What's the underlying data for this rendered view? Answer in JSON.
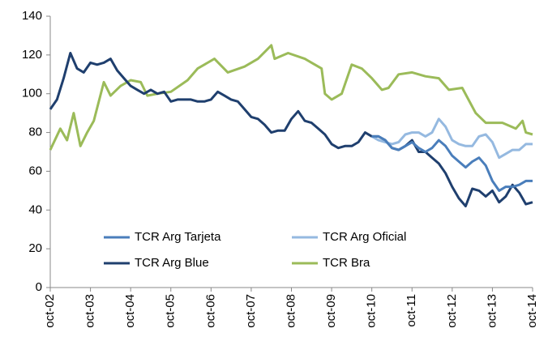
{
  "chart_data": {
    "type": "line",
    "xlim": [
      0,
      144
    ],
    "xticks": [
      {
        "value": 0,
        "label": "oct-02"
      },
      {
        "value": 12,
        "label": "oct-03"
      },
      {
        "value": 24,
        "label": "oct-04"
      },
      {
        "value": 36,
        "label": "oct-05"
      },
      {
        "value": 48,
        "label": "oct-06"
      },
      {
        "value": 60,
        "label": "oct-07"
      },
      {
        "value": 72,
        "label": "oct-08"
      },
      {
        "value": 84,
        "label": "oct-09"
      },
      {
        "value": 96,
        "label": "oct-10"
      },
      {
        "value": 108,
        "label": "oct-11"
      },
      {
        "value": 120,
        "label": "oct-12"
      },
      {
        "value": 132,
        "label": "oct-13"
      },
      {
        "value": 144,
        "label": "oct-14"
      }
    ],
    "ylim": [
      0,
      140
    ],
    "yticks": [
      0,
      20,
      40,
      60,
      80,
      100,
      120,
      140
    ],
    "grid": false,
    "series": [
      {
        "name": "TCR Arg Tarjeta",
        "color": "#4a7ebb",
        "x": [
          96,
          98,
          100,
          102,
          104,
          106,
          108,
          110,
          112,
          114,
          116,
          118,
          120,
          122,
          124,
          126,
          128,
          130,
          132,
          134,
          136,
          138,
          140,
          142,
          144
        ],
        "values": [
          78,
          78,
          76,
          72,
          71,
          73,
          75,
          72,
          70,
          72,
          76,
          73,
          68,
          65,
          62,
          65,
          67,
          63,
          55,
          50,
          52,
          52,
          53,
          55,
          55
        ]
      },
      {
        "name": "TCR Arg Oficial",
        "color": "#95b9e0",
        "x": [
          96,
          98,
          100,
          102,
          104,
          106,
          108,
          110,
          112,
          114,
          116,
          118,
          120,
          122,
          124,
          126,
          128,
          130,
          132,
          134,
          136,
          138,
          140,
          142,
          144
        ],
        "values": [
          78,
          76,
          75,
          74,
          75,
          79,
          80,
          80,
          78,
          80,
          87,
          83,
          76,
          74,
          73,
          73,
          78,
          79,
          75,
          67,
          69,
          71,
          71,
          74,
          74
        ]
      },
      {
        "name": "TCR Arg Blue",
        "color": "#1f3f6e",
        "x": [
          0,
          2,
          4,
          6,
          8,
          10,
          12,
          14,
          16,
          18,
          20,
          22,
          24,
          26,
          28,
          30,
          32,
          34,
          36,
          38,
          40,
          42,
          44,
          46,
          48,
          50,
          52,
          54,
          56,
          58,
          60,
          62,
          64,
          66,
          68,
          70,
          72,
          74,
          76,
          78,
          80,
          82,
          84,
          86,
          88,
          90,
          92,
          94,
          96,
          98,
          100,
          102,
          104,
          106,
          108,
          110,
          112,
          114,
          116,
          118,
          120,
          122,
          124,
          126,
          128,
          130,
          132,
          134,
          136,
          138,
          140,
          142,
          144
        ],
        "values": [
          92,
          97,
          108,
          121,
          113,
          111,
          116,
          115,
          116,
          118,
          112,
          108,
          104,
          102,
          100,
          102,
          100,
          101,
          96,
          97,
          97,
          97,
          96,
          96,
          97,
          101,
          99,
          97,
          96,
          92,
          88,
          87,
          84,
          80,
          81,
          81,
          87,
          91,
          86,
          85,
          82,
          79,
          74,
          72,
          73,
          73,
          75,
          80,
          78,
          78,
          76,
          72,
          71,
          73,
          76,
          70,
          70,
          67,
          64,
          59,
          52,
          46,
          42,
          51,
          50,
          47,
          50,
          44,
          47,
          53,
          49,
          43,
          44
        ]
      },
      {
        "name": "TCR Bra",
        "color": "#9bbb59",
        "x": [
          0,
          3,
          5,
          7,
          9,
          11,
          13,
          16,
          18,
          21,
          24,
          27,
          29,
          32,
          36,
          41,
          44,
          49,
          53,
          58,
          62,
          66,
          67,
          71,
          76,
          81,
          82,
          84,
          87,
          90,
          93,
          96,
          99,
          101,
          104,
          108,
          112,
          116,
          119,
          123,
          127,
          130,
          135,
          139,
          141,
          142,
          144
        ],
        "values": [
          71,
          82,
          76,
          90,
          73,
          80,
          86,
          106,
          99,
          104,
          107,
          106,
          99,
          100,
          101,
          107,
          113,
          118,
          111,
          114,
          118,
          125,
          118,
          121,
          118,
          113,
          100,
          97,
          100,
          115,
          113,
          108,
          102,
          103,
          110,
          111,
          109,
          108,
          102,
          103,
          90,
          85,
          85,
          82,
          86,
          80,
          79
        ]
      }
    ]
  }
}
